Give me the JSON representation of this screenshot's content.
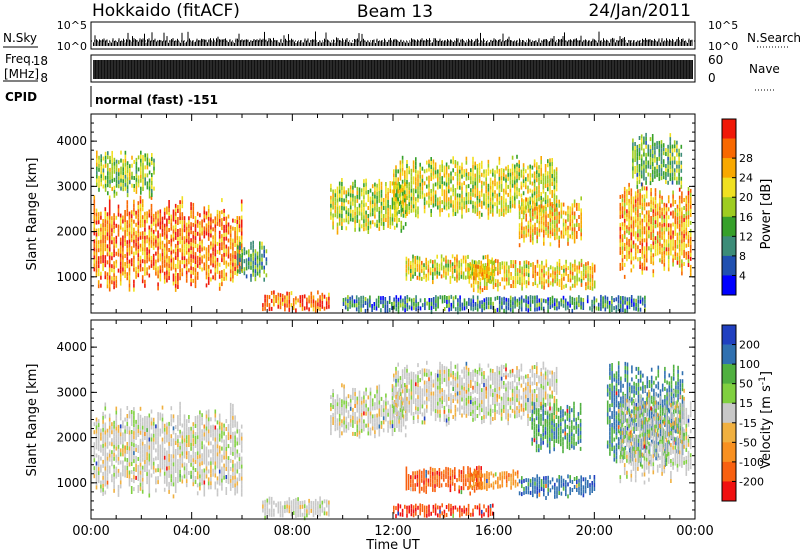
{
  "header": {
    "radar": "Hokkaido (fitACF)",
    "beam": "Beam 13",
    "date": "24/Jan/2011"
  },
  "status_panels": {
    "nsky_label": "N.Sky",
    "nsky_ticks": [
      "10^5",
      "10^0"
    ],
    "nsearch_label": "N.Search",
    "nsearch_ticks": [
      "10^5",
      "10^0"
    ],
    "freq_label": "Freq.",
    "freq_unit": "[MHz]",
    "freq_ticks": [
      "18",
      "8"
    ],
    "nave_label": "Nave",
    "nave_ticks": [
      "60",
      "0"
    ],
    "cpid_label": "CPID",
    "cpid_value": "normal (fast) -151"
  },
  "chart_data": [
    {
      "type": "heatmap",
      "name": "power-panel",
      "xlabel": "",
      "ylabel": "Slant Range [km]",
      "x_domain_hours": [
        0,
        24
      ],
      "ylim": [
        200,
        4600
      ],
      "yticks": [
        1000,
        2000,
        3000,
        4000
      ],
      "colorbar": {
        "label": "Power [dB]",
        "ticks": [
          4,
          8,
          12,
          16,
          20,
          24,
          28
        ],
        "colors": [
          "#0000ff",
          "#2050b0",
          "#3c8c78",
          "#36a02a",
          "#9ecc20",
          "#f0e020",
          "#f8a800",
          "#f86800",
          "#f01808"
        ]
      },
      "regions": [
        {
          "t": [
            0.1,
            6.0
          ],
          "r": [
            700,
            2800
          ],
          "level": 0.82
        },
        {
          "t": [
            0.2,
            2.5
          ],
          "r": [
            2800,
            3800
          ],
          "level": 0.5
        },
        {
          "t": [
            5.8,
            7.0
          ],
          "r": [
            900,
            1800
          ],
          "level": 0.35
        },
        {
          "t": [
            6.8,
            9.5
          ],
          "r": [
            250,
            700
          ],
          "level": 0.88
        },
        {
          "t": [
            9.5,
            12.5
          ],
          "r": [
            2000,
            3200
          ],
          "level": 0.55
        },
        {
          "t": [
            12.0,
            18.5
          ],
          "r": [
            2300,
            3700
          ],
          "level": 0.58
        },
        {
          "t": [
            12.5,
            16.0
          ],
          "r": [
            900,
            1500
          ],
          "level": 0.62
        },
        {
          "t": [
            15.0,
            20.0
          ],
          "r": [
            700,
            1400
          ],
          "level": 0.66
        },
        {
          "t": [
            17.0,
            19.5
          ],
          "r": [
            1700,
            2800
          ],
          "level": 0.7
        },
        {
          "t": [
            10.0,
            22.0
          ],
          "r": [
            250,
            600
          ],
          "level": 0.25
        },
        {
          "t": [
            21.0,
            23.8
          ],
          "r": [
            1000,
            3100
          ],
          "level": 0.74
        },
        {
          "t": [
            21.5,
            23.5
          ],
          "r": [
            3000,
            4200
          ],
          "level": 0.4
        }
      ]
    },
    {
      "type": "heatmap",
      "name": "velocity-panel",
      "xlabel": "Time UT",
      "ylabel": "Slant Range [km]",
      "x_domain_hours": [
        0,
        24
      ],
      "xticks": [
        "00:00",
        "04:00",
        "08:00",
        "12:00",
        "16:00",
        "20:00",
        "00:00"
      ],
      "ylim": [
        200,
        4600
      ],
      "yticks": [
        1000,
        2000,
        3000,
        4000
      ],
      "colorbar": {
        "label": "Velocity [m s-1]",
        "ticks": [
          200,
          100,
          50,
          15,
          -15,
          -50,
          -100,
          -200
        ],
        "colors": [
          "#2040c0",
          "#3070b0",
          "#50b040",
          "#80d040",
          "#c8c8c8",
          "#f0b040",
          "#f89020",
          "#f86010",
          "#f01010"
        ]
      },
      "regions": [
        {
          "t": [
            0.1,
            6.0
          ],
          "r": [
            700,
            2800
          ],
          "level": 0.0
        },
        {
          "t": [
            6.8,
            9.5
          ],
          "r": [
            250,
            700
          ],
          "level": 0.0
        },
        {
          "t": [
            9.5,
            12.5
          ],
          "r": [
            2000,
            3200
          ],
          "level": 0.0
        },
        {
          "t": [
            12.0,
            18.5
          ],
          "r": [
            2300,
            3700
          ],
          "level": 0.0
        },
        {
          "t": [
            12.5,
            15.5
          ],
          "r": [
            800,
            1400
          ],
          "level": -0.75
        },
        {
          "t": [
            12.0,
            16.0
          ],
          "r": [
            280,
            550
          ],
          "level": -0.9
        },
        {
          "t": [
            15.0,
            17.0
          ],
          "r": [
            900,
            1300
          ],
          "level": -0.5
        },
        {
          "t": [
            17.0,
            20.0
          ],
          "r": [
            700,
            1200
          ],
          "level": 0.75
        },
        {
          "t": [
            17.5,
            19.5
          ],
          "r": [
            1700,
            2800
          ],
          "level": 0.55
        },
        {
          "t": [
            20.5,
            23.5
          ],
          "r": [
            1400,
            3700
          ],
          "level": 0.65
        },
        {
          "t": [
            21.0,
            23.8
          ],
          "r": [
            1000,
            3100
          ],
          "level": 0.0
        }
      ]
    }
  ]
}
